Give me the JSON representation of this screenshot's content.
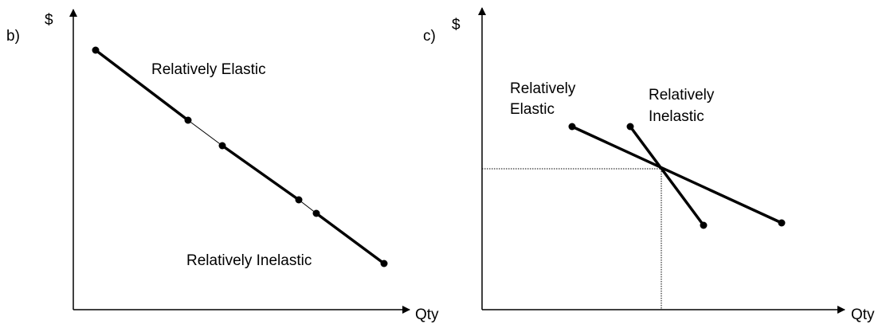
{
  "panels": [
    {
      "label": "b)",
      "y_axis": "$",
      "x_axis": "Qty",
      "annotations": [
        {
          "lines": [
            "Relatively Elastic"
          ]
        },
        {
          "lines": [
            "Relatively Inelastic"
          ]
        }
      ]
    },
    {
      "label": "c)",
      "y_axis": "$",
      "x_axis": "Qty",
      "annotations": [
        {
          "lines": [
            "Relatively",
            "Elastic"
          ]
        },
        {
          "lines": [
            "Relatively",
            "Inelastic"
          ]
        }
      ]
    }
  ]
}
